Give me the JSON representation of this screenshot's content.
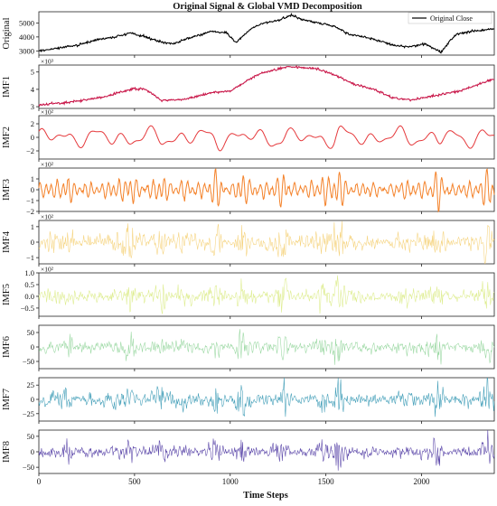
{
  "chart_data": {
    "type": "line",
    "title": "Original Signal & Global VMD Decomposition",
    "xlabel": "Time Steps",
    "xlim": [
      0,
      2380
    ],
    "x_ticks": [
      0,
      500,
      1000,
      1500,
      2000
    ],
    "legend": {
      "entries": [
        "Original Close"
      ],
      "placement": "top-right"
    },
    "grid": false,
    "panels": [
      {
        "ylabel": "Original",
        "color": "#000000",
        "ylim": [
          2700,
          5800
        ],
        "y_ticks": [
          3000,
          4000,
          5000
        ],
        "y_tick_labels": [
          "3000",
          "4000",
          "5000"
        ],
        "exponent": "",
        "kind": "trend",
        "x": [
          0,
          100,
          200,
          300,
          400,
          480,
          560,
          620,
          700,
          780,
          900,
          980,
          1030,
          1100,
          1170,
          1260,
          1320,
          1380,
          1460,
          1540,
          1620,
          1700,
          1780,
          1860,
          1940,
          2020,
          2100,
          2180,
          2260,
          2380
        ],
        "values": [
          3000,
          3200,
          3400,
          3800,
          4000,
          4300,
          4000,
          3700,
          3500,
          3900,
          4400,
          4300,
          3600,
          4500,
          5000,
          5200,
          5600,
          5200,
          5000,
          4800,
          4200,
          4000,
          3700,
          3400,
          3300,
          3500,
          2900,
          4200,
          4400,
          4600
        ]
      },
      {
        "ylabel": "IMF1",
        "color": "#c9184a",
        "ylim": [
          2.9,
          5.4
        ],
        "y_ticks": [
          3,
          4,
          5
        ],
        "y_tick_labels": [
          "3",
          "4",
          "5"
        ],
        "exponent": "×10³",
        "kind": "trend",
        "x": [
          0,
          200,
          350,
          500,
          560,
          640,
          750,
          900,
          1000,
          1150,
          1300,
          1450,
          1550,
          1650,
          1750,
          1850,
          1950,
          2050,
          2200,
          2380
        ],
        "values": [
          3.1,
          3.3,
          3.6,
          4.05,
          4.0,
          3.35,
          3.4,
          3.8,
          3.9,
          4.9,
          5.3,
          5.2,
          4.8,
          4.3,
          4.0,
          3.5,
          3.4,
          3.6,
          3.9,
          4.6
        ]
      },
      {
        "ylabel": "IMF2",
        "color": "#e5383b",
        "ylim": [
          -3.2,
          3.2
        ],
        "y_ticks": [
          -2,
          0,
          2
        ],
        "y_tick_labels": [
          "−2",
          "0",
          "2"
        ],
        "exponent": "×10²",
        "kind": "smooth",
        "amp": 1.6,
        "seed": 11
      },
      {
        "ylabel": "IMF3",
        "color": "#f4822a",
        "ylim": [
          -2.0,
          2.0
        ],
        "y_ticks": [
          -2,
          -1,
          0,
          1
        ],
        "y_tick_labels": [
          "−2",
          "−1",
          "0",
          "1"
        ],
        "exponent": "×10²",
        "kind": "osc",
        "amp": 0.85,
        "seed": 23
      },
      {
        "ylabel": "IMF4",
        "color": "#f5d27a",
        "ylim": [
          -1.4,
          1.4
        ],
        "y_ticks": [
          -1,
          0,
          1
        ],
        "y_tick_labels": [
          "−1",
          "0",
          "1"
        ],
        "exponent": "×10²",
        "kind": "noise",
        "amp": 0.55,
        "seed": 37
      },
      {
        "ylabel": "IMF5",
        "color": "#dcec8a",
        "ylim": [
          -0.85,
          1.0
        ],
        "y_ticks": [
          -0.5,
          0.0,
          0.5,
          1.0
        ],
        "y_tick_labels": [
          "−0.5",
          "0.0",
          "0.5",
          "1.0"
        ],
        "exponent": "×10²",
        "kind": "noise",
        "amp": 0.3,
        "seed": 41
      },
      {
        "ylabel": "IMF6",
        "color": "#98d7a0",
        "ylim": [
          -75,
          75
        ],
        "y_ticks": [
          -50,
          0,
          50
        ],
        "y_tick_labels": [
          "−50",
          "0",
          "50"
        ],
        "exponent": "",
        "kind": "noise",
        "amp": 22,
        "seed": 53
      },
      {
        "ylabel": "IMF7",
        "color": "#3a9ab5",
        "ylim": [
          -38,
          38
        ],
        "y_ticks": [
          -25,
          0,
          25
        ],
        "y_tick_labels": [
          "−25",
          "0",
          "25"
        ],
        "exponent": "",
        "kind": "noise",
        "amp": 13,
        "seed": 67
      },
      {
        "ylabel": "IMF8",
        "color": "#5540a6",
        "ylim": [
          -70,
          70
        ],
        "y_ticks": [
          -50,
          0,
          50
        ],
        "y_tick_labels": [
          "−50",
          "0",
          "50"
        ],
        "exponent": "",
        "kind": "noise",
        "amp": 20,
        "seed": 79
      }
    ]
  }
}
